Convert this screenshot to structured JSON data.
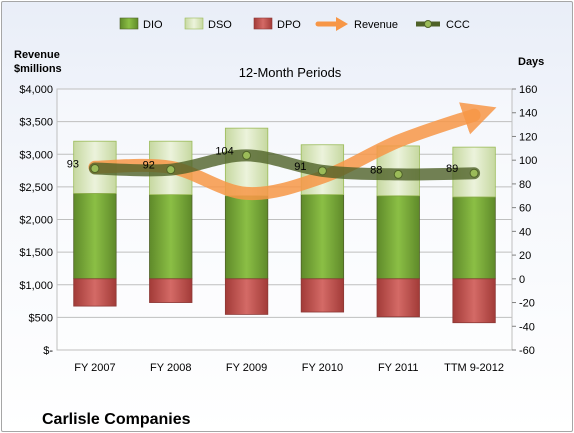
{
  "chart_data": {
    "type": "bar",
    "subtitle": "12-Month Periods",
    "company": "Carlisle Companies",
    "y_left_label_line1": "Revenue",
    "y_left_label_line2": "$millions",
    "y_right_label": "Days",
    "categories": [
      "FY 2007",
      "FY 2008",
      "FY 2009",
      "FY 2010",
      "FY 2011",
      "TTM 9-2012"
    ],
    "y_left": {
      "min": 0,
      "max": 4000,
      "step": 500,
      "ticks": [
        "$-",
        "$500",
        "$1,000",
        "$1,500",
        "$2,000",
        "$2,500",
        "$3,000",
        "$3,500",
        "$4,000"
      ]
    },
    "y_right": {
      "min": -60,
      "max": 160,
      "step": 20
    },
    "series": [
      {
        "name": "DIO",
        "color": "#77a33c",
        "values": [
          72,
          71,
          70,
          71,
          70,
          69
        ]
      },
      {
        "name": "DSO",
        "color": "#d7e4bd",
        "values": [
          44,
          45,
          57,
          42,
          42,
          42
        ]
      },
      {
        "name": "DPO",
        "color": "#c0504d",
        "values": [
          -23,
          -20,
          -30,
          -28,
          -32,
          -37
        ]
      },
      {
        "name": "Revenue",
        "color": "#f79646",
        "values": [
          2800,
          2800,
          2400,
          2650,
          3200,
          3600
        ]
      },
      {
        "name": "CCC",
        "color": "#4f6228",
        "values": [
          93,
          92,
          104,
          91,
          88,
          89
        ]
      }
    ],
    "ccc_labels": [
      "93",
      "92",
      "104",
      "91",
      "88",
      "89"
    ],
    "grid": true,
    "legend_position": "top"
  }
}
